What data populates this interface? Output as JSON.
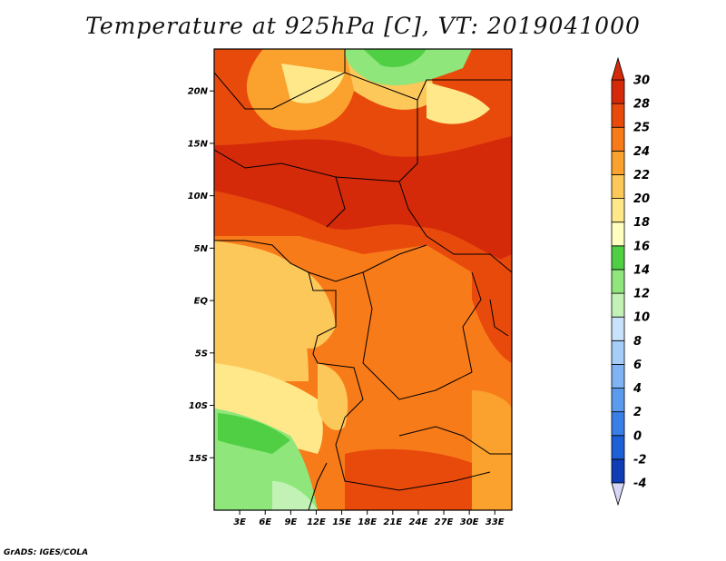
{
  "title": "Temperature at 925hPa [C], VT: 2019041000",
  "credit": "GrADS: IGES/COLA",
  "map": {
    "lon_range": [
      0,
      35
    ],
    "lat_range": [
      -20,
      24
    ],
    "lat_ticks": [
      {
        "value": 20,
        "label": "20N"
      },
      {
        "value": 15,
        "label": "15N"
      },
      {
        "value": 10,
        "label": "10N"
      },
      {
        "value": 5,
        "label": "5N"
      },
      {
        "value": 0,
        "label": "EQ"
      },
      {
        "value": -5,
        "label": "5S"
      },
      {
        "value": -10,
        "label": "10S"
      },
      {
        "value": -15,
        "label": "15S"
      }
    ],
    "lon_ticks": [
      {
        "value": 3,
        "label": "3E"
      },
      {
        "value": 6,
        "label": "6E"
      },
      {
        "value": 9,
        "label": "9E"
      },
      {
        "value": 12,
        "label": "12E"
      },
      {
        "value": 15,
        "label": "15E"
      },
      {
        "value": 18,
        "label": "18E"
      },
      {
        "value": 21,
        "label": "21E"
      },
      {
        "value": 24,
        "label": "24E"
      },
      {
        "value": 27,
        "label": "27E"
      },
      {
        "value": 30,
        "label": "30E"
      },
      {
        "value": 33,
        "label": "33E"
      }
    ]
  },
  "colorbar": {
    "levels": [
      "-4",
      "-2",
      "0",
      "2",
      "4",
      "6",
      "8",
      "10",
      "12",
      "14",
      "16",
      "18",
      "20",
      "22",
      "24",
      "25",
      "28",
      "30"
    ],
    "colors": [
      "#0a1a6e",
      "#0f3db5",
      "#1c5fd6",
      "#3a7fe6",
      "#5a9bee",
      "#7fb3f3",
      "#a6cdf8",
      "#c8e2fb",
      "#c2f2b6",
      "#8fe67b",
      "#50cf45",
      "#ffffc0",
      "#ffe88a",
      "#fdc85a",
      "#fba22e",
      "#f87b1a",
      "#e84a0c",
      "#d42a0a"
    ],
    "under_color": "#d6d6f6",
    "over_color": "#d42a0a"
  }
}
